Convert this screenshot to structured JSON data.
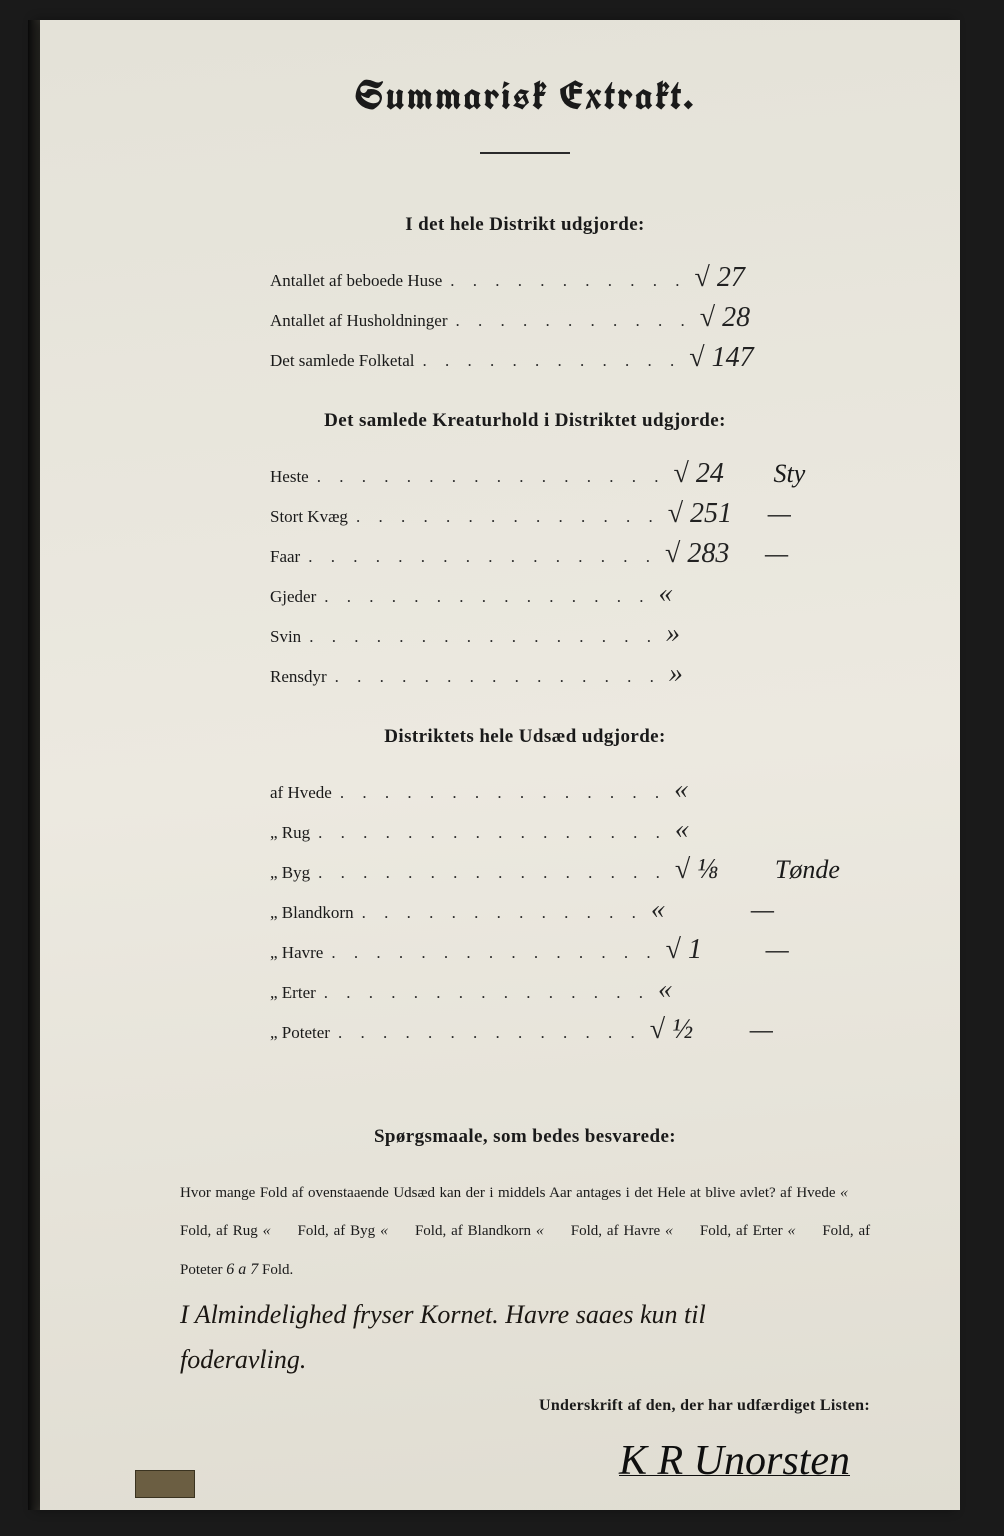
{
  "colors": {
    "page_bg": "#e8e6de",
    "ink": "#1a1a1a",
    "scan_bg": "#1a1a1a",
    "handwriting": "#222222"
  },
  "title": "Summarisk Extrakt.",
  "sections": {
    "district_total": {
      "heading": "I det hele Distrikt udgjorde:",
      "rows": [
        {
          "label": "Antallet af beboede Huse",
          "dots": ". . . . . . . . . . .",
          "value": "√ 27",
          "unit": ""
        },
        {
          "label": "Antallet af Husholdninger",
          "dots": ". . . . . . . . . . .",
          "value": "√ 28",
          "unit": ""
        },
        {
          "label": "Det samlede Folketal",
          "dots": ". . . . . . . . . . . .",
          "value": "√ 147",
          "unit": ""
        }
      ]
    },
    "livestock": {
      "heading": "Det samlede Kreaturhold i Distriktet udgjorde:",
      "rows": [
        {
          "label": "Heste",
          "dots": ". . . . . . . . . . . . . . . .",
          "value": "√ 24",
          "unit": "Sty"
        },
        {
          "label": "Stort Kvæg",
          "dots": ". . . . . . . . . . . . . .",
          "value": "√ 251",
          "unit": "—"
        },
        {
          "label": "Faar",
          "dots": ". . . . . . . . . . . . . . . .",
          "value": "√ 283",
          "unit": "—"
        },
        {
          "label": "Gjeder",
          "dots": ". . . . . . . . . . . . . . .",
          "value": "«",
          "unit": ""
        },
        {
          "label": "Svin",
          "dots": ". . . . . . . . . . . . . . . .",
          "value": "»",
          "unit": ""
        },
        {
          "label": "Rensdyr",
          "dots": ". . . . . . . . . . . . . . .",
          "value": "»",
          "unit": ""
        }
      ]
    },
    "seed": {
      "heading": "Distriktets hele Udsæd udgjorde:",
      "rows": [
        {
          "label": "af Hvede",
          "dots": ". . . . . . . . . . . . . . .",
          "value": "«",
          "unit": ""
        },
        {
          "label": "„ Rug",
          "dots": ". . . . . . . . . . . . . . . .",
          "value": "«",
          "unit": ""
        },
        {
          "label": "„ Byg",
          "dots": ". . . . . . . . . . . . . . . .",
          "value": "√ ⅛",
          "unit": "Tønde"
        },
        {
          "label": "„ Blandkorn",
          "dots": ". . . . . . . . . . . . .",
          "value": "«",
          "unit": "—"
        },
        {
          "label": "„ Havre",
          "dots": ". . . . . . . . . . . . . . .",
          "value": "√ 1",
          "unit": "—"
        },
        {
          "label": "„ Erter",
          "dots": ". . . . . . . . . . . . . . .",
          "value": "«",
          "unit": ""
        },
        {
          "label": "„ Poteter",
          "dots": ". . . . . . . . . . . . . .",
          "value": "√ ½",
          "unit": "—"
        }
      ]
    }
  },
  "questions": {
    "heading": "Spørgsmaale, som bedes besvarede:",
    "lead": "Hvor mange Fold af ovenstaaende Udsæd kan der i middels Aar antages i det Hele at blive avlet?",
    "parts": [
      {
        "grain": "af Hvede",
        "value": "«",
        "suffix": "Fold,"
      },
      {
        "grain": "af Rug",
        "value": "«",
        "suffix": "Fold,"
      },
      {
        "grain": "af Byg",
        "value": "«",
        "suffix": "Fold,"
      },
      {
        "grain": "af Blandkorn",
        "value": "«",
        "suffix": "Fold,"
      },
      {
        "grain": "af Havre",
        "value": "«",
        "suffix": "Fold,"
      },
      {
        "grain": "af Erter",
        "value": "«",
        "suffix": "Fold,"
      },
      {
        "grain": "af Poteter",
        "value": "6 a 7",
        "suffix": "Fold."
      }
    ],
    "note1": "I Almindelighed fryser Kornet. Havre saaes kun til",
    "note2": "foderavling."
  },
  "signature_label": "Underskrift af den, der har udfærdiget Listen:",
  "signature": "K R Unorsten"
}
